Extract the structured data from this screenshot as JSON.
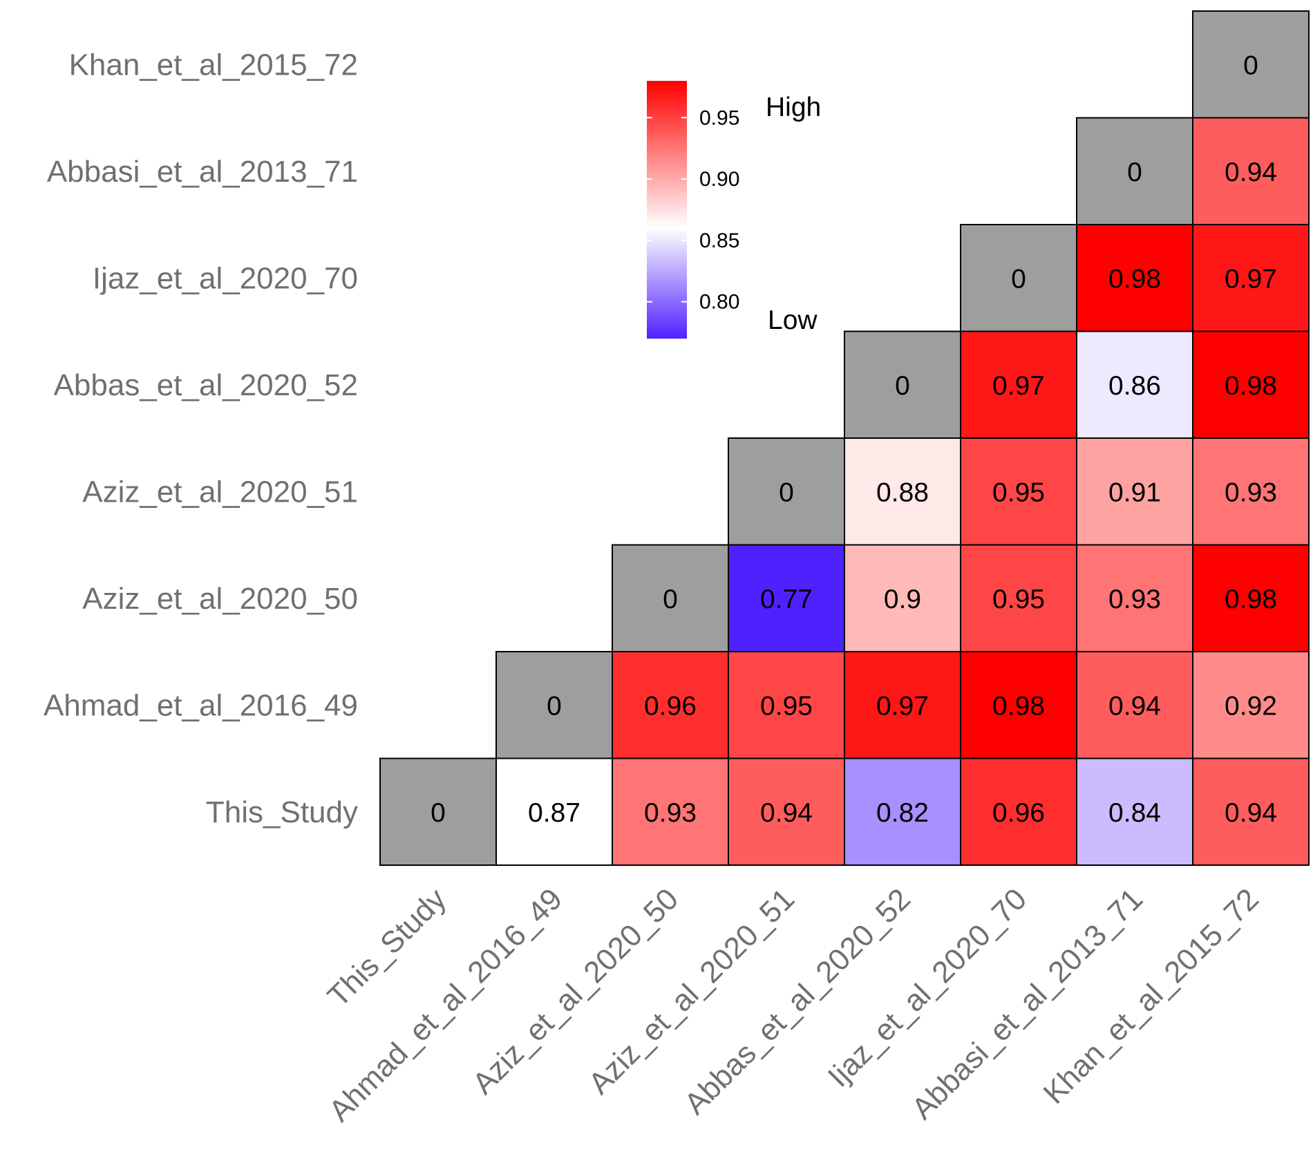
{
  "chart_data": {
    "type": "heatmap",
    "title": "",
    "xlabel": "",
    "ylabel": "",
    "x_categories": [
      "This_Study",
      "Ahmad_et_al_2016_49",
      "Aziz_et_al_2020_50",
      "Aziz_et_al_2020_51",
      "Abbas_et_al_2020_52",
      "Ijaz_et_al_2020_70",
      "Abbasi_et_al_2013_71",
      "Khan_et_al_2015_72"
    ],
    "y_categories": [
      "This_Study",
      "Ahmad_et_al_2016_49",
      "Aziz_et_al_2020_50",
      "Aziz_et_al_2020_51",
      "Abbas_et_al_2020_52",
      "Ijaz_et_al_2020_70",
      "Abbasi_et_al_2013_71",
      "Khan_et_al_2015_72"
    ],
    "matrix": [
      [
        0,
        0.87,
        0.93,
        0.94,
        0.82,
        0.96,
        0.84,
        0.94
      ],
      [
        null,
        0,
        0.96,
        0.95,
        0.97,
        0.98,
        0.94,
        0.92
      ],
      [
        null,
        null,
        0,
        0.77,
        0.9,
        0.95,
        0.93,
        0.98
      ],
      [
        null,
        null,
        null,
        0,
        0.88,
        0.95,
        0.91,
        0.93
      ],
      [
        null,
        null,
        null,
        null,
        0,
        0.97,
        0.86,
        0.98
      ],
      [
        null,
        null,
        null,
        null,
        null,
        0,
        0.98,
        0.97
      ],
      [
        null,
        null,
        null,
        null,
        null,
        null,
        0,
        0.94
      ],
      [
        null,
        null,
        null,
        null,
        null,
        null,
        null,
        0
      ]
    ],
    "diagonal_color": "#9e9e9e",
    "color_scale": {
      "low": "#5021ff",
      "mid": "#ffffff",
      "high": "#ff0000",
      "min": 0.77,
      "mid_value": 0.87,
      "max": 0.98
    },
    "legend": {
      "placement": "top-center",
      "ticks": [
        0.8,
        0.85,
        0.9,
        0.95
      ],
      "high_label": "High",
      "low_label": "Low"
    }
  }
}
